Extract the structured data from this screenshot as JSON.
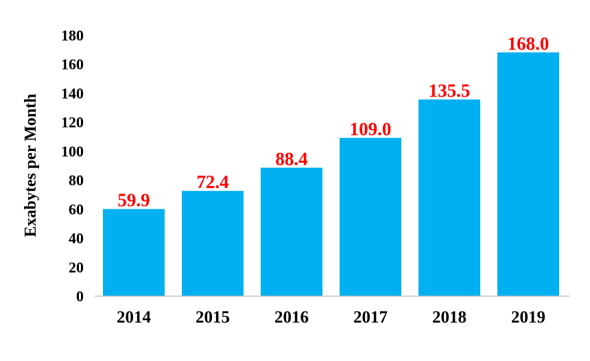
{
  "chart_data": {
    "type": "bar",
    "title": "",
    "xlabel": "",
    "ylabel": "Exabytes per Month",
    "categories": [
      "2014",
      "2015",
      "2016",
      "2017",
      "2018",
      "2019"
    ],
    "values": [
      59.9,
      72.4,
      88.4,
      109.0,
      135.5,
      168.0
    ],
    "data_labels": [
      "59.9",
      "72.4",
      "88.4",
      "109.0",
      "135.5",
      "168.0"
    ],
    "ylim": [
      0,
      180
    ],
    "yticks": [
      0,
      20,
      40,
      60,
      80,
      100,
      120,
      140,
      160,
      180
    ],
    "grid": false,
    "legend": "none",
    "colors": {
      "bar": "#00b0f0",
      "data_label": "#ff0000",
      "axis": "#bfbfbf"
    }
  }
}
